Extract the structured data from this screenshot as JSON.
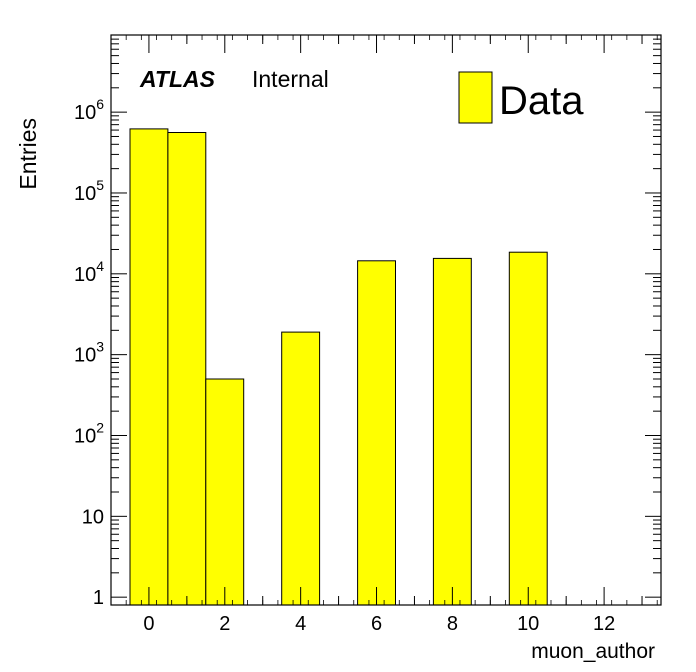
{
  "chart_data": {
    "type": "bar",
    "style": "histogram",
    "xlabel": "muon_author",
    "ylabel": "Entries",
    "yscale": "log",
    "xlim": [
      -1,
      13.5
    ],
    "ylim": [
      0.8,
      9000000
    ],
    "x_tick_labels": [
      "0",
      "2",
      "4",
      "6",
      "8",
      "10",
      "12"
    ],
    "y_tick_labels": [
      {
        "base": "1",
        "exp": ""
      },
      {
        "base": "10",
        "exp": ""
      },
      {
        "base": "10",
        "exp": "2"
      },
      {
        "base": "10",
        "exp": "3"
      },
      {
        "base": "10",
        "exp": "4"
      },
      {
        "base": "10",
        "exp": "5"
      },
      {
        "base": "10",
        "exp": "6"
      }
    ],
    "bin_width": 1,
    "bin_centers": [
      0,
      1,
      2,
      3,
      4,
      5,
      6,
      7,
      8,
      9,
      10,
      11,
      12
    ],
    "values": [
      620000,
      560000,
      500,
      0,
      1900,
      0,
      14500,
      0,
      15500,
      0,
      18500,
      0,
      0
    ],
    "series": [
      {
        "name": "Data",
        "color": "#ffff00"
      }
    ],
    "legend_position": "top-right",
    "grid": false
  },
  "atlas_label": {
    "bold": "ATLAS",
    "text": "Internal"
  }
}
